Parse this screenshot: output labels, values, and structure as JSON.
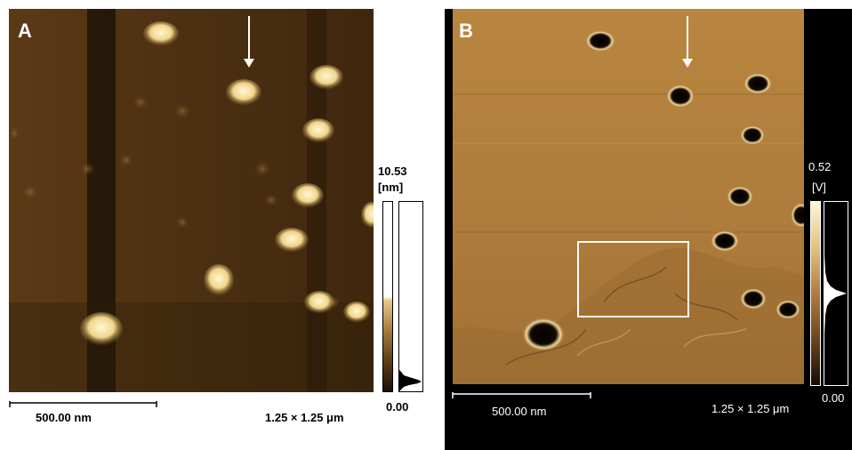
{
  "panel_a": {
    "label": "A",
    "scale_bar_label": "500.00 nm",
    "scan_size_label": "1.25 × 1.25 μm",
    "colorbar_max": "10.53",
    "colorbar_unit": "[nm]",
    "colorbar_min": "0.00"
  },
  "panel_b": {
    "label": "B",
    "scale_bar_label": "500.00 nm",
    "scan_size_label": "1.25 × 1.25 μm",
    "colorbar_max": "0.52",
    "colorbar_unit": "[V]",
    "colorbar_min": "0.00"
  },
  "colors": {
    "panel_a_background": "#4a2f12",
    "panel_b_background": "#b07d3e",
    "particle": "#f4dc9a",
    "black_frame": "#000000"
  }
}
